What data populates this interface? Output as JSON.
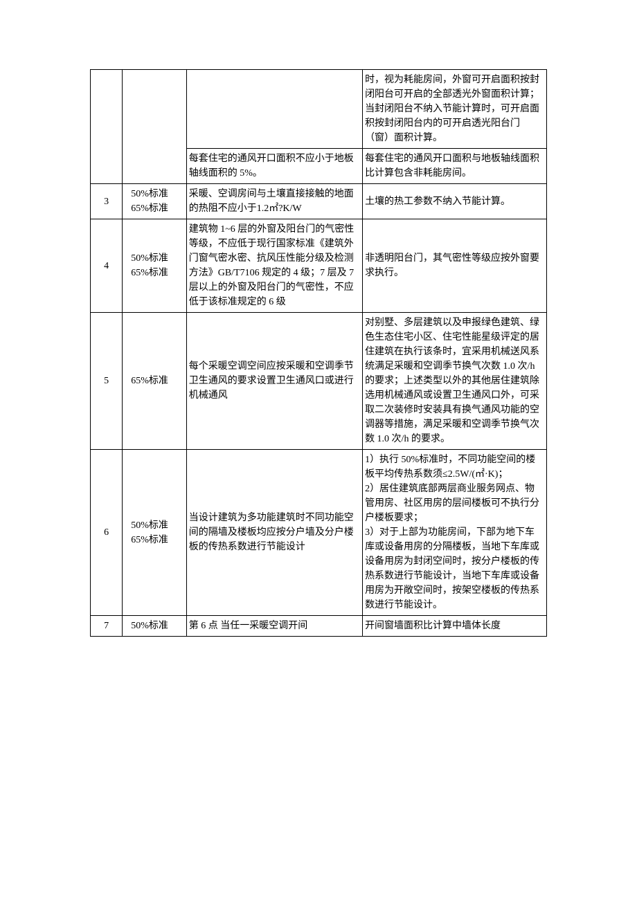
{
  "rows": [
    {
      "num": "",
      "std": "",
      "sub": [
        {
          "c3": "",
          "c4": "时，视为耗能房间，外窗可开启面积按封闭阳台可开启的全部透光外窗面积计算；当封闭阳台不纳入节能计算时，可开启面积按封闭阳台内的可开启透光阳台门（窗）面积计算。"
        },
        {
          "c3": "每套住宅的通风开口面积不应小于地板轴线面积的 5%。",
          "c4": "每套住宅的通风开口面积与地板轴线面积比计算包含非耗能房间。"
        }
      ]
    },
    {
      "num": "3",
      "std": "50%标准\n65%标准",
      "sub": [
        {
          "c3": "采暖、空调房间与土壤直接接触的地面的热阻不应小于1.2㎡?K/W",
          "c4": "土壤的热工参数不纳入节能计算。"
        }
      ]
    },
    {
      "num": "4",
      "std": "50%标准\n65%标准",
      "sub": [
        {
          "c3": "建筑物 1~6 层的外窗及阳台门的气密性等级，不应低于现行国家标准《建筑外门窗气密水密、抗风压性能分级及检测方法》GB/T7106 规定的 4 级；7 层及 7 层以上的外窗及阳台门的气密性，不应低于该标准规定的 6 级",
          "c4": "非透明阳台门，其气密性等级应按外窗要求执行。"
        }
      ]
    },
    {
      "num": "5",
      "std": "65%标准",
      "sub": [
        {
          "c3": "每个采暖空调空间应按采暖和空调季节卫生通风的要求设置卫生通风口或进行机械通风",
          "c4": "对别墅、多层建筑以及申报绿色建筑、绿色生态住宅小区、住宅性能星级评定的居住建筑在执行该条时，宜采用机械送风系统满足采暖和空调季节换气次数 1.0 次/h 的要求；上述类型以外的其他居住建筑除选用机械通风或设置卫生通风口外，可采取二次装修时安装具有换气通风功能的空调器等措施，满足采暖和空调季节换气次数 1.0 次/h 的要求。"
        }
      ]
    },
    {
      "num": "6",
      "std": "50%标准\n65%标准",
      "sub": [
        {
          "c3": "当设计建筑为多功能建筑时不同功能空间的隔墙及楼板均应按分户墙及分户楼板的传热系数进行节能设计",
          "c4": "1）执行 50%标准时，不同功能空间的楼板平均传热系数须≤2.5W/(㎡·K)；\n2）居住建筑底部两层商业服务网点、物管用房、社区用房的层间楼板可不执行分户楼板要求；\n3）对于上部为功能房间，下部为地下车库或设备用房的分隔楼板，当地下车库或设备用房为封闭空间时，按分户楼板的传热系数进行节能设计，当地下车库或设备用房为开敞空间时，按架空楼板的传热系数进行节能设计。"
        }
      ]
    },
    {
      "num": "7",
      "std": "50%标准",
      "sub": [
        {
          "c3": "第 6 点 当任一采暖空调开间",
          "c4": "开间窗墙面积比计算中墙体长度"
        }
      ]
    }
  ]
}
